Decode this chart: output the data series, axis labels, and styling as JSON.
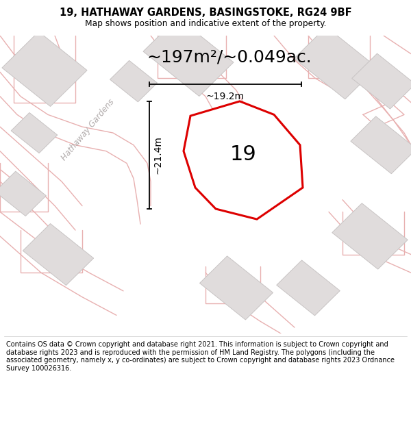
{
  "title": "19, HATHAWAY GARDENS, BASINGSTOKE, RG24 9BF",
  "subtitle": "Map shows position and indicative extent of the property.",
  "area_text": "~197m²/~0.049ac.",
  "dim_vertical": "~21.4m",
  "dim_horizontal": "~19.2m",
  "label_number": "19",
  "footer": "Contains OS data © Crown copyright and database right 2021. This information is subject to Crown copyright and database rights 2023 and is reproduced with the permission of HM Land Registry. The polygons (including the associated geometry, namely x, y co-ordinates) are subject to Crown copyright and database rights 2023 Ordnance Survey 100026316.",
  "map_bg": "#f5f2f2",
  "building_fill": "#e0dcdc",
  "building_edge": "#c8c4c4",
  "road_outline_color": "#e8b0b0",
  "red_outline": "#dd0000",
  "prop_fill": "#edeaea",
  "header_bg": "#ffffff",
  "footer_bg": "#ffffff",
  "road_lw": 1.0,
  "prop_lw": 2.2
}
